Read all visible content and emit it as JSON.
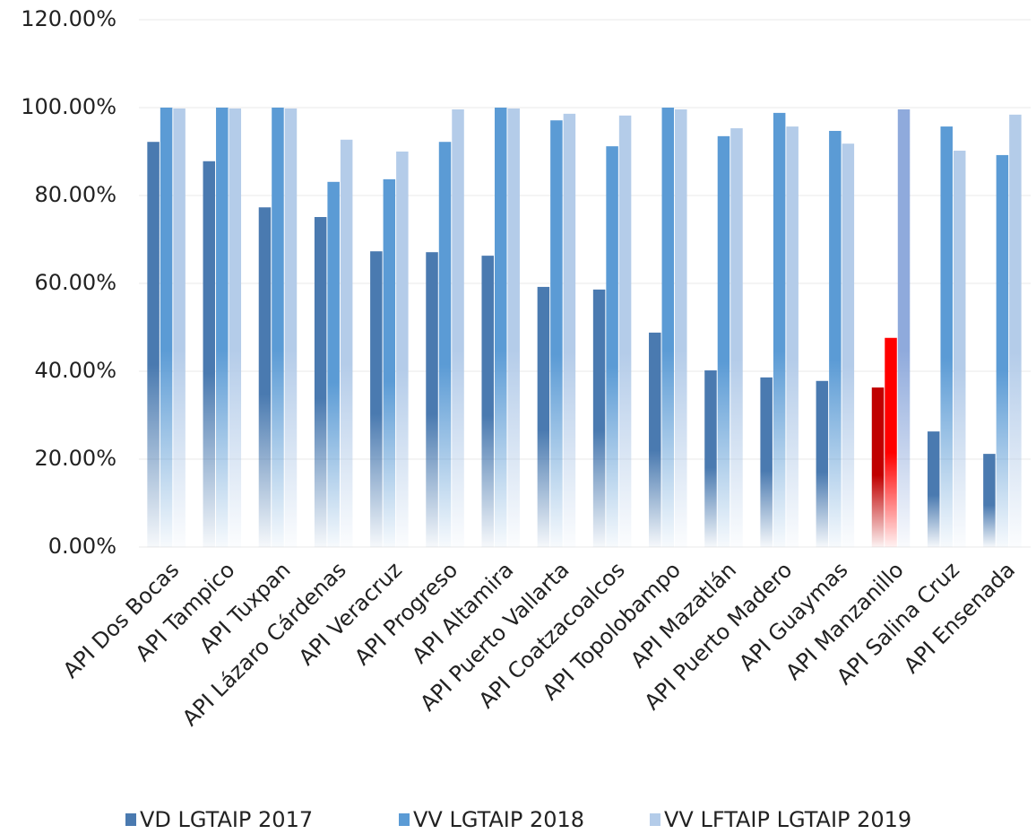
{
  "chart_data": {
    "type": "bar",
    "categories": [
      "API Dos Bocas",
      "API Tampico",
      "API Tuxpan",
      "API Lázaro Cárdenas",
      "API Veracruz",
      "API Progreso",
      "API Altamira",
      "API Puerto Vallarta",
      "API Coatzacoalcos",
      "API Topolobampo",
      "API Mazatlán",
      "API Puerto Madero",
      "API Guaymas",
      "API Manzanillo",
      "API Salina Cruz",
      "API Ensenada"
    ],
    "series": [
      {
        "name": "VD LGTAIP 2017",
        "color": "#4a7ab0",
        "colors": [
          "#4a7ab0",
          "#4a7ab0",
          "#4a7ab0",
          "#4a7ab0",
          "#4a7ab0",
          "#4a7ab0",
          "#4a7ab0",
          "#4a7ab0",
          "#4a7ab0",
          "#4a7ab0",
          "#4a7ab0",
          "#4a7ab0",
          "#4a7ab0",
          "#c00000",
          "#4a7ab0",
          "#4a7ab0"
        ],
        "values": [
          92.2,
          87.8,
          77.3,
          75.1,
          67.3,
          67.1,
          66.3,
          59.2,
          58.6,
          48.8,
          40.2,
          38.6,
          37.8,
          36.3,
          26.3,
          21.2
        ]
      },
      {
        "name": "VV LGTAIP 2018",
        "color": "#5b9bd5",
        "colors": [
          "#5b9bd5",
          "#5b9bd5",
          "#5b9bd5",
          "#5b9bd5",
          "#5b9bd5",
          "#5b9bd5",
          "#5b9bd5",
          "#5b9bd5",
          "#5b9bd5",
          "#5b9bd5",
          "#5b9bd5",
          "#5b9bd5",
          "#5b9bd5",
          "#ff0000",
          "#5b9bd5",
          "#5b9bd5"
        ],
        "values": [
          100,
          100,
          100,
          83.1,
          83.7,
          92.2,
          100,
          97.1,
          91.2,
          100,
          93.5,
          98.8,
          94.7,
          47.6,
          95.7,
          89.2
        ]
      },
      {
        "name": "VV LFTAIP LGTAIP 2019",
        "color": "#b4cce9",
        "colors": [
          "#b4cce9",
          "#b4cce9",
          "#b4cce9",
          "#b4cce9",
          "#b4cce9",
          "#b4cce9",
          "#b4cce9",
          "#b4cce9",
          "#b4cce9",
          "#b4cce9",
          "#b4cce9",
          "#b4cce9",
          "#b4cce9",
          "#8faadc",
          "#b4cce9",
          "#b4cce9"
        ],
        "values": [
          99.8,
          99.8,
          99.8,
          92.7,
          90,
          99.6,
          99.8,
          98.6,
          98.2,
          99.6,
          95.3,
          95.7,
          91.8,
          99.6,
          90.2,
          98.4
        ]
      }
    ],
    "ylim": [
      0,
      120
    ],
    "yticks": [
      {
        "value": 0,
        "label": "0.00%"
      },
      {
        "value": 20,
        "label": "20.00%"
      },
      {
        "value": 40,
        "label": "40.00%"
      },
      {
        "value": 60,
        "label": "60.00%"
      },
      {
        "value": 80,
        "label": "80.00%"
      },
      {
        "value": 100,
        "label": "100.00%"
      },
      {
        "value": 120,
        "label": "120.00%"
      }
    ],
    "grid": true,
    "legend": "bottom"
  }
}
